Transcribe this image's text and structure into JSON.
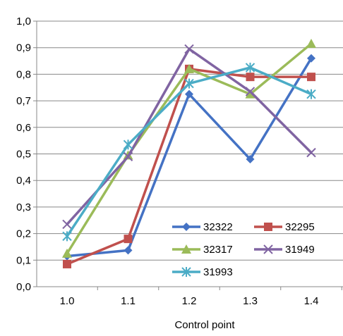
{
  "chart_data": {
    "type": "line",
    "title": "",
    "xlabel": "Control point",
    "ylabel": "",
    "categories": [
      "1.0",
      "1.1",
      "1.2",
      "1.3",
      "1.4"
    ],
    "ylim": [
      0,
      1
    ],
    "yticks": [
      "0,0",
      "0,1",
      "0,2",
      "0,3",
      "0,4",
      "0,5",
      "0,6",
      "0,7",
      "0,8",
      "0,9",
      "1,0"
    ],
    "grid": "horizontal",
    "legend_placement": "bottom-right",
    "series": [
      {
        "name": "32322",
        "color": "#4472C4",
        "marker": "diamond",
        "values": [
          0.115,
          0.137,
          0.725,
          0.48,
          0.86
        ]
      },
      {
        "name": "32295",
        "color": "#C0504D",
        "marker": "square",
        "values": [
          0.085,
          0.18,
          0.82,
          0.79,
          0.79
        ]
      },
      {
        "name": "32317",
        "color": "#9BBB59",
        "marker": "triangle",
        "values": [
          0.125,
          0.495,
          0.82,
          0.725,
          0.915
        ]
      },
      {
        "name": "31949",
        "color": "#8064A2",
        "marker": "x",
        "values": [
          0.235,
          0.49,
          0.895,
          0.735,
          0.505
        ]
      },
      {
        "name": "31993",
        "color": "#4BACC6",
        "marker": "star",
        "values": [
          0.19,
          0.535,
          0.765,
          0.825,
          0.725
        ]
      }
    ]
  }
}
